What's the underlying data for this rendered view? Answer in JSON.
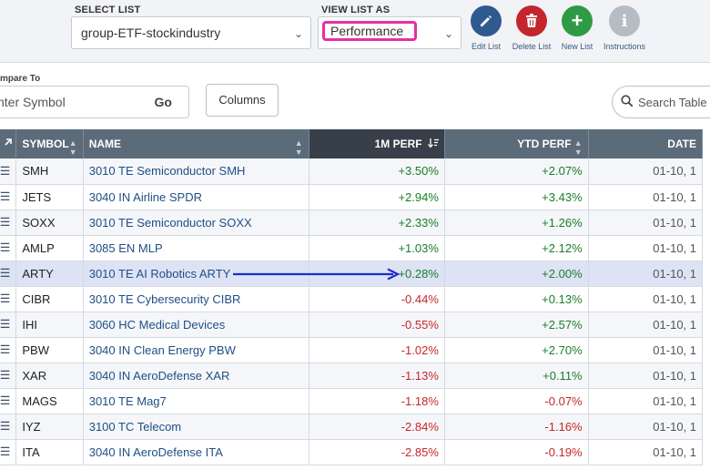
{
  "toolbar": {
    "select_list_label": "SELECT LIST",
    "select_list_value": "group-ETF-stockindustry",
    "view_list_label": "VIEW LIST AS",
    "view_list_value": "Performance",
    "edit_label": "Edit List",
    "delete_label": "Delete List",
    "new_label": "New List",
    "instructions_label": "Instructions"
  },
  "compare": {
    "label": "mpare To",
    "placeholder": "nter Symbol",
    "go_label": "Go",
    "columns_label": "Columns",
    "search_placeholder": "Search Table"
  },
  "table": {
    "headers": {
      "symbol": "SYMBOL",
      "name": "NAME",
      "perf_1m": "1M PERF",
      "ytd": "YTD PERF",
      "date": "DATE"
    },
    "rows": [
      {
        "symbol": "SMH",
        "name": "3010 TE Semiconductor SMH",
        "perf_1m": "+3.50%",
        "ytd": "+2.07%",
        "date": "01-10, 1"
      },
      {
        "symbol": "JETS",
        "name": "3040 IN Airline SPDR",
        "perf_1m": "+2.94%",
        "ytd": "+3.43%",
        "date": "01-10, 1"
      },
      {
        "symbol": "SOXX",
        "name": "3010 TE Semiconductor SOXX",
        "perf_1m": "+2.33%",
        "ytd": "+1.26%",
        "date": "01-10, 1"
      },
      {
        "symbol": "AMLP",
        "name": "3085 EN MLP",
        "perf_1m": "+1.03%",
        "ytd": "+2.12%",
        "date": "01-10, 1"
      },
      {
        "symbol": "ARTY",
        "name": "3010 TE AI Robotics ARTY",
        "perf_1m": "+0.28%",
        "ytd": "+2.00%",
        "date": "01-10, 1"
      },
      {
        "symbol": "CIBR",
        "name": "3010 TE Cybersecurity CIBR",
        "perf_1m": "-0.44%",
        "ytd": "+0.13%",
        "date": "01-10, 1"
      },
      {
        "symbol": "IHI",
        "name": "3060 HC Medical Devices",
        "perf_1m": "-0.55%",
        "ytd": "+2.57%",
        "date": "01-10, 1"
      },
      {
        "symbol": "PBW",
        "name": "3040 IN Clean Energy PBW",
        "perf_1m": "-1.02%",
        "ytd": "+2.70%",
        "date": "01-10, 1"
      },
      {
        "symbol": "XAR",
        "name": "3040 IN AeroDefense XAR",
        "perf_1m": "-1.13%",
        "ytd": "+0.11%",
        "date": "01-10, 1"
      },
      {
        "symbol": "MAGS",
        "name": "3010 TE Mag7",
        "perf_1m": "-1.18%",
        "ytd": "-0.07%",
        "date": "01-10, 1"
      },
      {
        "symbol": "IYZ",
        "name": "3100 TC Telecom",
        "perf_1m": "-2.84%",
        "ytd": "-1.16%",
        "date": "01-10, 1"
      },
      {
        "symbol": "ITA",
        "name": "3040 IN AeroDefense ITA",
        "perf_1m": "-2.85%",
        "ytd": "-0.19%",
        "date": "01-10, 1"
      }
    ]
  },
  "colors": {
    "positive": "#1a7d2b",
    "negative": "#c4282b",
    "highlight_row": "#dde3f5",
    "annotation_arrow": "#1a2fc4",
    "view_select_highlight": "#e62ea8"
  },
  "icons": {
    "edit": "pencil-icon",
    "delete": "trash-icon",
    "new": "plus-icon",
    "instructions": "info-icon",
    "search": "magnifier-icon",
    "row_handle": "hamburger-icon"
  }
}
